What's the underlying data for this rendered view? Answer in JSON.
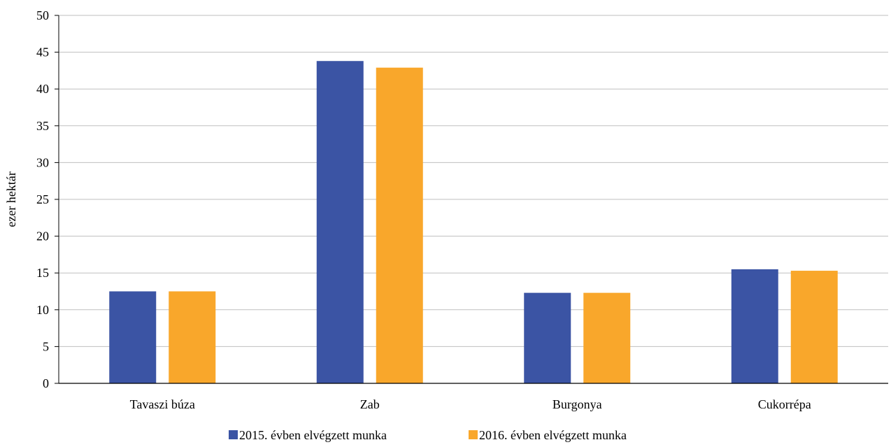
{
  "chart_data": {
    "type": "bar",
    "title": "",
    "xlabel": "",
    "ylabel": "ezer hektár",
    "ylim": [
      0,
      50
    ],
    "yticks": [
      0,
      5,
      10,
      15,
      20,
      25,
      30,
      35,
      40,
      45,
      50
    ],
    "grid": true,
    "legend_position": "bottom",
    "categories": [
      "Tavaszi búza",
      "Zab",
      "Burgonya",
      "Cukorrépa"
    ],
    "series": [
      {
        "name": "2015. évben elvégzett munka",
        "color": "#3B54A4",
        "values": [
          12.5,
          43.8,
          12.3,
          15.5
        ]
      },
      {
        "name": "2016. évben elvégzett munka",
        "color": "#F9A72B",
        "values": [
          12.5,
          42.9,
          12.3,
          15.3
        ]
      }
    ]
  }
}
